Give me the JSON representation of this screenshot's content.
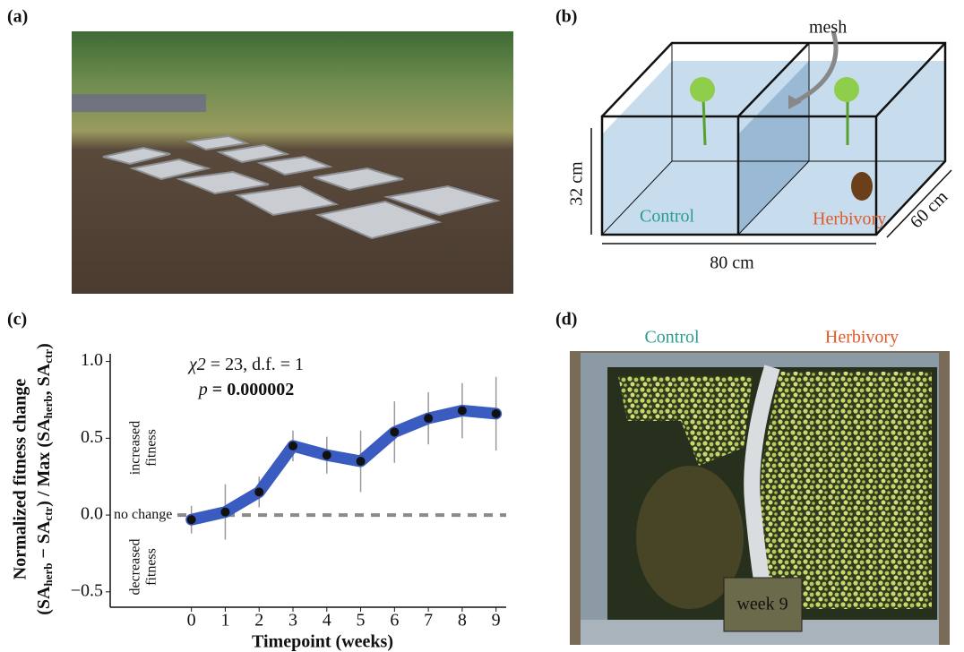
{
  "panels": {
    "a": {
      "label": "(a)"
    },
    "b": {
      "label": "(b)",
      "mesh": "mesh",
      "height": "32 cm",
      "width": "80 cm",
      "depth": "60 cm",
      "control": "Control",
      "herbivory": "Herbivory"
    },
    "d": {
      "label": "(d)",
      "control": "Control",
      "herbivory": "Herbivory",
      "week": "week 9"
    }
  },
  "chart_data": {
    "type": "line",
    "panel_label": "(c)",
    "x_label": "Timepoint (weeks)",
    "y_label": "Normalized fitness change",
    "y_label_parts": [
      "(SA",
      "herb",
      " − SA",
      "ctr",
      ") / Max (SA",
      "herb",
      ", SA",
      "ctr",
      ")"
    ],
    "stat_parts": [
      "χ2",
      " = 23, d.f. = 1"
    ],
    "p_parts": [
      "p",
      " = 0.000002"
    ],
    "increased": [
      "increased",
      "fitness"
    ],
    "decreased": [
      "decreased",
      "fitness"
    ],
    "no_change": "no change",
    "x": [
      0,
      1,
      2,
      3,
      4,
      5,
      6,
      7,
      8,
      9
    ],
    "values": [
      -0.03,
      0.02,
      0.15,
      0.45,
      0.39,
      0.35,
      0.54,
      0.63,
      0.68,
      0.66
    ],
    "errors": [
      0.09,
      0.18,
      0.1,
      0.1,
      0.12,
      0.2,
      0.2,
      0.17,
      0.18,
      0.24
    ],
    "color": "#3a5bbf",
    "xlim": [
      -2.4,
      9.3
    ],
    "xticks": [
      0,
      1,
      2,
      3,
      4,
      5,
      6,
      7,
      8,
      9
    ],
    "ylim": [
      -0.6,
      1.05
    ],
    "yticks": [
      {
        "value": -0.5,
        "label": "−0.5"
      },
      {
        "value": 0,
        "label": "0.0"
      },
      0.5,
      {
        "value": 1,
        "label": "1.0"
      }
    ]
  }
}
